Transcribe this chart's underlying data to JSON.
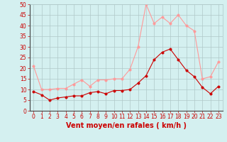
{
  "title": "",
  "xlabel": "Vent moyen/en rafales ( km/h )",
  "ylabel": "",
  "background_color": "#d4f0f0",
  "grid_color": "#b0c8c8",
  "x": [
    0,
    1,
    2,
    3,
    4,
    5,
    6,
    7,
    8,
    9,
    10,
    11,
    12,
    13,
    14,
    15,
    16,
    17,
    18,
    19,
    20,
    21,
    22,
    23
  ],
  "mean_wind": [
    9,
    7.5,
    5,
    6,
    6.5,
    7,
    7,
    8.5,
    9,
    8,
    9.5,
    9.5,
    10,
    13,
    16.5,
    24,
    27.5,
    29,
    24,
    19,
    16,
    11,
    8,
    11.5
  ],
  "gust_wind": [
    21,
    10,
    10,
    10.5,
    10.5,
    12.5,
    14.5,
    11.5,
    14.5,
    14.5,
    15,
    15,
    19.5,
    30,
    50,
    41,
    44,
    41,
    45,
    40,
    37.5,
    15,
    16,
    23
  ],
  "mean_color": "#cc0000",
  "gust_color": "#ff9999",
  "ylim": [
    0,
    50
  ],
  "yticks": [
    0,
    5,
    10,
    15,
    20,
    25,
    30,
    35,
    40,
    45,
    50
  ],
  "xticks": [
    0,
    1,
    2,
    3,
    4,
    5,
    6,
    7,
    8,
    9,
    10,
    11,
    12,
    13,
    14,
    15,
    16,
    17,
    18,
    19,
    20,
    21,
    22,
    23
  ],
  "marker_size": 2.5,
  "line_width": 0.8,
  "xlabel_fontsize": 7,
  "tick_fontsize": 5.5,
  "spine_color": "#888888",
  "axis_color": "#cc0000"
}
